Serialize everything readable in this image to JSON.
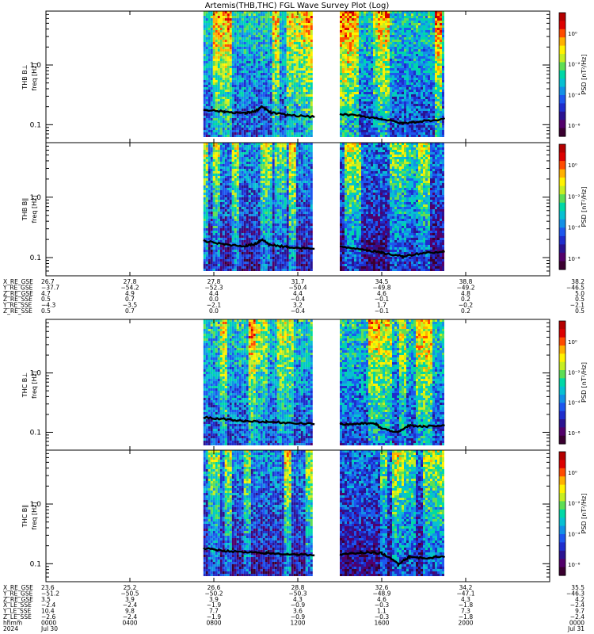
{
  "title": "Artemis(THB,THC) FGL Wave Survey Plot (Log)",
  "colors": {
    "colormap": [
      "#3a0030",
      "#52006a",
      "#2a1390",
      "#1f2dcc",
      "#1d57ee",
      "#1390e6",
      "#07c0d2",
      "#00d8a6",
      "#5ede55",
      "#c6ee22",
      "#fff200",
      "#ffb000",
      "#ff4b00",
      "#dc0000",
      "#b40000"
    ],
    "trace": "#000000",
    "frame": "#000000"
  },
  "chart_data": [
    {
      "type": "heatmap",
      "probe": "THB",
      "ylabel_probe": "THB B⊥",
      "ylabel": "freq [Hz]",
      "yscale": "log",
      "ylim": [
        0.05,
        8
      ],
      "yticks": [
        "1.0",
        "0.1"
      ],
      "zlabel": "PSD [nT²/Hz]",
      "zscale": "log",
      "zticks": [
        "10⁰",
        "10⁻²",
        "10⁻⁴",
        "10⁻⁶"
      ],
      "data_intervals_hours": [
        [
          7.5,
          12.8
        ],
        [
          14.0,
          19.0
        ]
      ],
      "intensity": "high",
      "trace_freq_hz": [
        [
          7.5,
          0.18
        ],
        [
          8.5,
          0.165
        ],
        [
          9.5,
          0.155
        ],
        [
          10.0,
          0.17
        ],
        [
          10.3,
          0.2
        ],
        [
          10.7,
          0.16
        ],
        [
          11.5,
          0.145
        ],
        [
          12.8,
          0.135
        ],
        [
          14.0,
          0.15
        ],
        [
          15.0,
          0.14
        ],
        [
          16.0,
          0.125
        ],
        [
          17.0,
          0.105
        ],
        [
          18.0,
          0.115
        ],
        [
          19.0,
          0.125
        ]
      ]
    },
    {
      "type": "heatmap",
      "probe": "THB",
      "ylabel_probe": "THB B∥",
      "ylabel": "freq [Hz]",
      "yscale": "log",
      "ylim": [
        0.05,
        8
      ],
      "yticks": [
        "1.0",
        "0.1"
      ],
      "zlabel": "PSD [nT²/Hz]",
      "zscale": "log",
      "zticks": [
        "10⁰",
        "10⁻²",
        "10⁻⁴",
        "10⁻⁶"
      ],
      "data_intervals_hours": [
        [
          7.5,
          12.8
        ],
        [
          14.0,
          19.0
        ]
      ],
      "intensity": "medium",
      "trace_freq_hz": [
        [
          7.5,
          0.19
        ],
        [
          8.5,
          0.165
        ],
        [
          9.5,
          0.155
        ],
        [
          10.0,
          0.17
        ],
        [
          10.3,
          0.2
        ],
        [
          10.7,
          0.16
        ],
        [
          11.5,
          0.15
        ],
        [
          12.8,
          0.14
        ],
        [
          14.0,
          0.15
        ],
        [
          15.0,
          0.14
        ],
        [
          16.0,
          0.12
        ],
        [
          17.0,
          0.105
        ],
        [
          18.0,
          0.12
        ],
        [
          19.0,
          0.125
        ]
      ]
    },
    {
      "type": "heatmap",
      "probe": "THC",
      "ylabel_probe": "THC B⊥",
      "ylabel": "freq [Hz]",
      "yscale": "log",
      "ylim": [
        0.05,
        8
      ],
      "yticks": [
        "1.0",
        "0.1"
      ],
      "zlabel": "PSD [nT²/Hz]",
      "zscale": "log",
      "zticks": [
        "10⁰",
        "10⁻²",
        "10⁻⁴",
        "10⁻⁶"
      ],
      "data_intervals_hours": [
        [
          7.5,
          12.8
        ],
        [
          14.0,
          19.0
        ]
      ],
      "intensity": "high",
      "trace_freq_hz": [
        [
          7.5,
          0.18
        ],
        [
          8.5,
          0.165
        ],
        [
          9.5,
          0.155
        ],
        [
          10.5,
          0.15
        ],
        [
          11.5,
          0.145
        ],
        [
          12.8,
          0.14
        ],
        [
          14.0,
          0.135
        ],
        [
          15.0,
          0.14
        ],
        [
          15.7,
          0.14
        ],
        [
          16.0,
          0.115
        ],
        [
          16.8,
          0.1
        ],
        [
          17.3,
          0.13
        ],
        [
          18.0,
          0.125
        ],
        [
          19.0,
          0.13
        ]
      ]
    },
    {
      "type": "heatmap",
      "probe": "THC",
      "ylabel_probe": "THC B∥",
      "ylabel": "freq [Hz]",
      "yscale": "log",
      "ylim": [
        0.05,
        8
      ],
      "yticks": [
        "1.0",
        "0.1"
      ],
      "zlabel": "PSD [nT²/Hz]",
      "zscale": "log",
      "zticks": [
        "10⁰",
        "10⁻²",
        "10⁻⁴",
        "10⁻⁶"
      ],
      "data_intervals_hours": [
        [
          7.5,
          12.8
        ],
        [
          14.0,
          19.0
        ]
      ],
      "intensity": "medium",
      "trace_freq_hz": [
        [
          7.5,
          0.18
        ],
        [
          8.5,
          0.165
        ],
        [
          9.5,
          0.155
        ],
        [
          10.5,
          0.15
        ],
        [
          11.5,
          0.145
        ],
        [
          12.8,
          0.14
        ],
        [
          14.0,
          0.14
        ],
        [
          15.0,
          0.155
        ],
        [
          16.0,
          0.15
        ],
        [
          16.8,
          0.1
        ],
        [
          17.3,
          0.13
        ],
        [
          18.0,
          0.125
        ],
        [
          19.0,
          0.13
        ]
      ]
    }
  ],
  "time_axis": {
    "range_hours": [
      0,
      24
    ],
    "tick_hours": [
      0,
      4,
      8,
      12,
      16,
      20,
      24
    ]
  },
  "ephemeris_thb": {
    "labels": [
      "X_RE_GSE",
      "Y_RE_GSE",
      "Z_RE_GSE",
      "Z_RE_SSE",
      "Y_RE_SSE",
      "Z_RE_SSE"
    ],
    "values": [
      [
        "26.7",
        "27.8",
        "27.8",
        "31.7",
        "34.5",
        "38.8",
        "38.2"
      ],
      [
        "−37.7",
        "−54.2",
        "−52.3",
        "−50.4",
        "−49.8",
        "−49.2",
        "−46.5"
      ],
      [
        "4.7",
        "4.9",
        "4.4",
        "4.4",
        "4.6",
        "4.8",
        "5.0"
      ],
      [
        "0.5",
        "0.7",
        "0.0",
        "−0.4",
        "−0.1",
        "0.2",
        "0.5"
      ],
      [
        "−4.3",
        "−3.5",
        "−2.1",
        "3.2",
        "1.7",
        "−0.2",
        "−2.1"
      ],
      [
        "0.5",
        "0.7",
        "0.0",
        "−0.4",
        "−0.1",
        "0.2",
        "0.5"
      ]
    ]
  },
  "ephemeris_thc": {
    "labels": [
      "X_RE_GSE",
      "Y_RE_GSE",
      "Z_RE_GSE",
      "X_LE_SSE",
      "Y_LE_SSE",
      "Z_LE_SSE",
      "hhmm",
      "2024"
    ],
    "values": [
      [
        "23.6",
        "25.2",
        "26.6",
        "28.8",
        "32.6",
        "34.2",
        "35.5"
      ],
      [
        "−51.2",
        "−50.5",
        "−50.2",
        "−50.3",
        "−48.9",
        "−47.1",
        "−46.3"
      ],
      [
        "3.5",
        "3.9",
        "3.9",
        "4.3",
        "4.6",
        "4.3",
        "4.2"
      ],
      [
        "−2.4",
        "−2.4",
        "−1.9",
        "−0.9",
        "−0.3",
        "−1.8",
        "−2.4"
      ],
      [
        "10.4",
        "9.8",
        "7.7",
        "3.6",
        "1.1",
        "7.3",
        "9.7"
      ],
      [
        "−2.6",
        "−2.4",
        "−1.9",
        "−0.9",
        "−0.3",
        "−1.8",
        "−2.4"
      ],
      [
        "0000",
        "0400",
        "0800",
        "1200",
        "1600",
        "2000",
        "0000"
      ],
      [
        "Jul 30",
        "",
        "",
        "",
        "",
        "",
        "Jul 31"
      ]
    ]
  }
}
